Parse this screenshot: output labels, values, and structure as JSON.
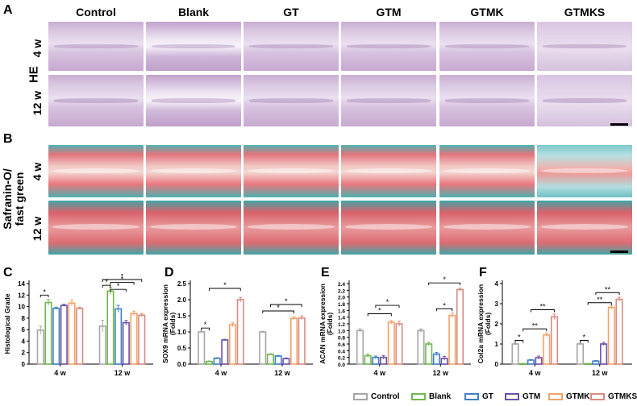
{
  "panels": {
    "A": "A",
    "B": "B",
    "C": "C",
    "D": "D",
    "E": "E",
    "F": "F"
  },
  "columns": [
    "Control",
    "Blank",
    "GT",
    "GTM",
    "GTMK",
    "GTMKS"
  ],
  "row_labels": {
    "he": "HE",
    "so_line1": "Safranin-O/",
    "so_line2": "fast green",
    "w4": "4 w",
    "w12": "12 w"
  },
  "colors": {
    "Control": "#a6a6a6",
    "Blank": "#70b84c",
    "GT": "#3f7fc5",
    "GTM": "#6d4fa8",
    "GTMK": "#f2a266",
    "GTMKS": "#d98a80"
  },
  "legend": [
    "Control",
    "Blank",
    "GT",
    "GTM",
    "GTMK",
    "GTMKS"
  ],
  "chart_data": [
    {
      "panel": "C",
      "type": "bar",
      "ylabel": "Histological Grade",
      "categories": [
        "4 w",
        "12 w"
      ],
      "ylim": [
        0,
        14
      ],
      "yticks": [
        0,
        2,
        4,
        6,
        8,
        10,
        12,
        14
      ],
      "series": [
        {
          "name": "Control",
          "values": [
            5.9,
            6.6
          ],
          "err": [
            0.7,
            1.0
          ]
        },
        {
          "name": "Blank",
          "values": [
            10.7,
            12.7
          ],
          "err": [
            0.5,
            0.6
          ]
        },
        {
          "name": "GT",
          "values": [
            9.7,
            9.6
          ],
          "err": [
            0.2,
            0.6
          ]
        },
        {
          "name": "GTM",
          "values": [
            10.2,
            7.2
          ],
          "err": [
            0.2,
            0.4
          ]
        },
        {
          "name": "GTMK",
          "values": [
            10.6,
            8.8
          ],
          "err": [
            0.5,
            0.4
          ]
        },
        {
          "name": "GTMKS",
          "values": [
            9.7,
            8.5
          ],
          "err": [
            0.2,
            0.3
          ]
        }
      ],
      "annotations": [
        "*",
        "*",
        "*",
        "*",
        "*"
      ]
    },
    {
      "panel": "D",
      "type": "bar",
      "ylabel": "SOX9 mRNA expression (Folds)",
      "categories": [
        "4 w",
        "12 w"
      ],
      "ylim": [
        0,
        2.5
      ],
      "yticks": [
        0.0,
        0.5,
        1.0,
        1.5,
        2.0,
        2.5
      ],
      "series": [
        {
          "name": "Control",
          "values": [
            1.0,
            1.0
          ],
          "err": [
            0.02,
            0.02
          ]
        },
        {
          "name": "Blank",
          "values": [
            0.08,
            0.3
          ],
          "err": [
            0.02,
            0.02
          ]
        },
        {
          "name": "GT",
          "values": [
            0.18,
            0.25
          ],
          "err": [
            0.02,
            0.02
          ]
        },
        {
          "name": "GTM",
          "values": [
            0.75,
            0.17
          ],
          "err": [
            0.02,
            0.02
          ]
        },
        {
          "name": "GTMK",
          "values": [
            1.22,
            1.42
          ],
          "err": [
            0.06,
            0.06
          ]
        },
        {
          "name": "GTMKS",
          "values": [
            2.0,
            1.43
          ],
          "err": [
            0.07,
            0.07
          ]
        }
      ],
      "annotations": [
        "*",
        "*",
        "*",
        "*"
      ]
    },
    {
      "panel": "E",
      "type": "bar",
      "ylabel": "ACAN mRNA expression (Folds)",
      "categories": [
        "4 w",
        "12 w"
      ],
      "ylim": [
        0,
        2.4
      ],
      "yticks": [
        0.0,
        0.2,
        0.4,
        0.6,
        0.8,
        1.0,
        1.2,
        1.4,
        1.6,
        1.8,
        2.0,
        2.2,
        2.4
      ],
      "series": [
        {
          "name": "Control",
          "values": [
            1.0,
            1.0
          ],
          "err": [
            0.05,
            0.05
          ]
        },
        {
          "name": "Blank",
          "values": [
            0.25,
            0.6
          ],
          "err": [
            0.05,
            0.05
          ]
        },
        {
          "name": "GT",
          "values": [
            0.2,
            0.3
          ],
          "err": [
            0.04,
            0.05
          ]
        },
        {
          "name": "GTM",
          "values": [
            0.2,
            0.17
          ],
          "err": [
            0.05,
            0.06
          ]
        },
        {
          "name": "GTMK",
          "values": [
            1.25,
            1.45
          ],
          "err": [
            0.05,
            0.07
          ]
        },
        {
          "name": "GTMKS",
          "values": [
            1.2,
            2.22
          ],
          "err": [
            0.08,
            0.04
          ]
        }
      ],
      "annotations": [
        "*",
        "*",
        "*",
        "*"
      ]
    },
    {
      "panel": "F",
      "type": "bar",
      "ylabel": "Col2a mRNA expression (Folds)",
      "categories": [
        "4 w",
        "12 w"
      ],
      "ylim": [
        0,
        4
      ],
      "yticks": [
        0,
        1,
        2,
        3,
        4
      ],
      "series": [
        {
          "name": "Control",
          "values": [
            1.0,
            1.0
          ],
          "err": [
            0.03,
            0.03
          ]
        },
        {
          "name": "Blank",
          "values": [
            0.02,
            0.02
          ],
          "err": [
            0.01,
            0.01
          ]
        },
        {
          "name": "GT",
          "values": [
            0.2,
            0.15
          ],
          "err": [
            0.03,
            0.03
          ]
        },
        {
          "name": "GTM",
          "values": [
            0.32,
            1.0
          ],
          "err": [
            0.08,
            0.08
          ]
        },
        {
          "name": "GTMK",
          "values": [
            1.45,
            2.82
          ],
          "err": [
            0.1,
            0.1
          ]
        },
        {
          "name": "GTMKS",
          "values": [
            2.35,
            3.22
          ],
          "err": [
            0.13,
            0.1
          ]
        }
      ],
      "annotations": [
        "*",
        "**",
        "**",
        "*",
        "**",
        "**"
      ]
    }
  ]
}
